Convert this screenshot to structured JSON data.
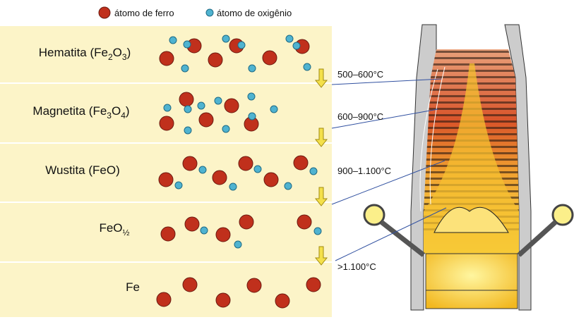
{
  "legend": {
    "iron": "átomo de ferro",
    "oxygen": "átomo de oxigênio"
  },
  "stages": [
    {
      "label": [
        "Hematita (Fe",
        "2",
        "O",
        "3",
        ")"
      ]
    },
    {
      "label": [
        "Magnetita (Fe",
        "3",
        "O",
        "4",
        ")"
      ]
    },
    {
      "label": [
        "Wustita (FeO)"
      ]
    },
    {
      "label": [
        "FeO",
        "½"
      ]
    },
    {
      "label": [
        "Fe"
      ]
    }
  ],
  "temperatures": [
    "500–600°C",
    "600–900°C",
    "900–1.100°C",
    ">1.100°C"
  ]
}
